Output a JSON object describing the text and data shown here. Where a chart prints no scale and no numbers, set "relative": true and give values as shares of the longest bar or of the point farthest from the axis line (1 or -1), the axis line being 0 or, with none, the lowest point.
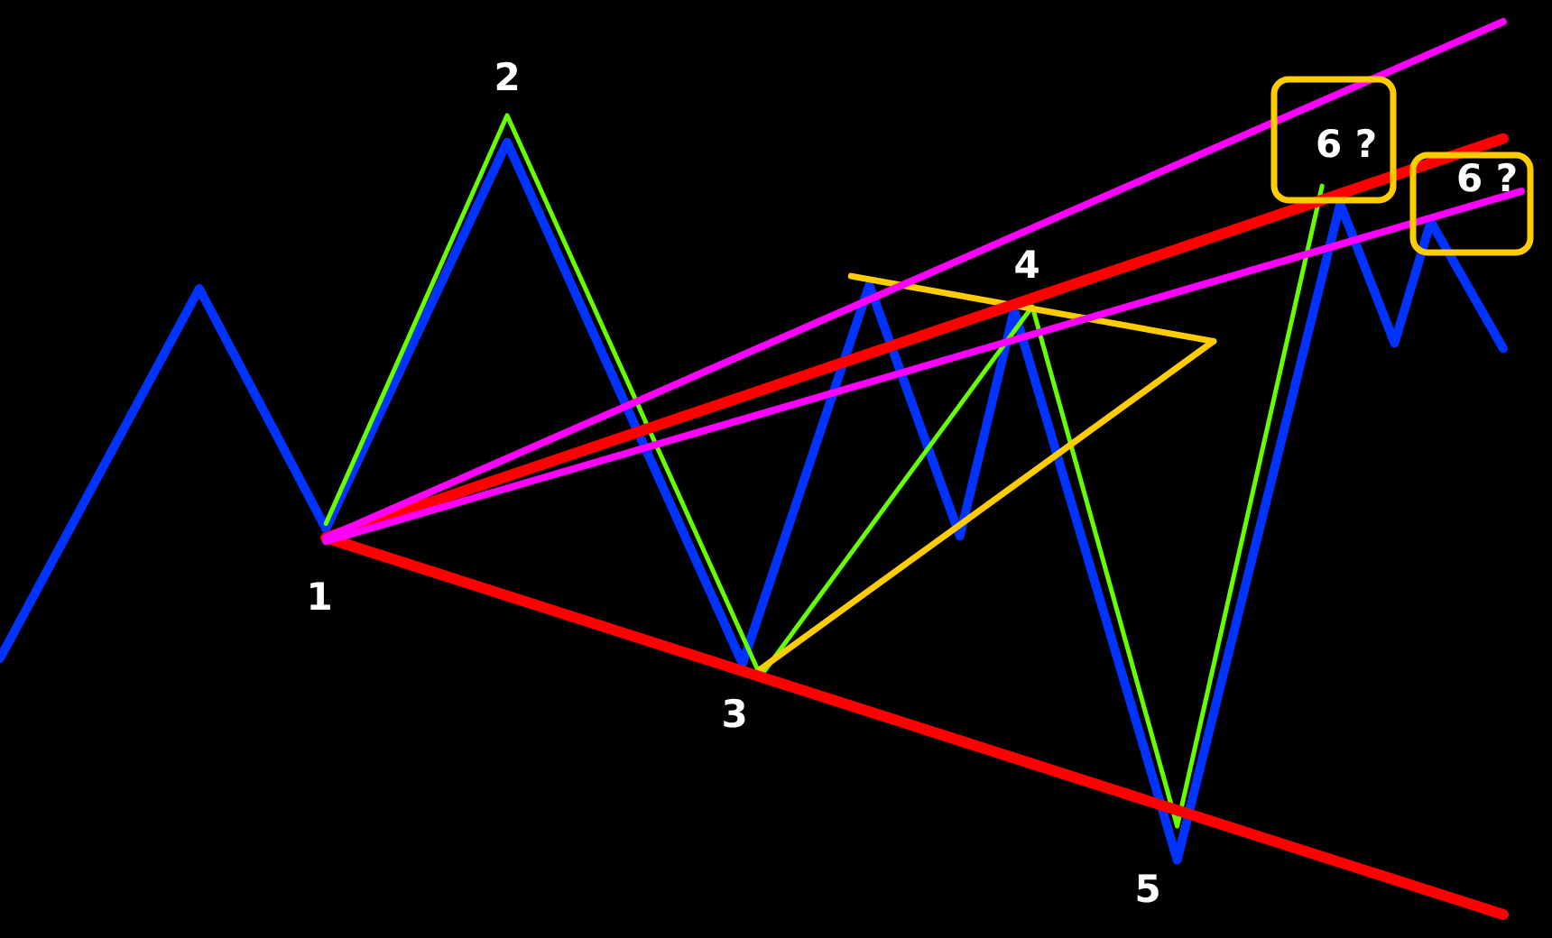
{
  "chart_data": {
    "type": "line",
    "relative": true,
    "tick_labels": false,
    "categories": [
      null,
      null,
      null,
      null,
      null,
      null,
      null,
      null,
      null,
      null,
      null,
      null,
      null,
      null,
      null,
      null,
      null,
      null,
      null,
      null,
      null,
      null,
      null,
      null,
      null,
      null,
      null,
      null,
      null,
      null,
      null,
      null,
      null,
      null,
      null,
      null,
      null,
      null,
      null,
      null,
      null,
      null,
      null,
      null,
      null,
      null,
      null,
      null,
      null,
      null,
      null,
      null,
      null,
      null,
      null,
      null,
      null,
      null,
      null,
      null,
      null,
      null,
      null,
      null,
      null,
      null,
      null,
      null,
      null,
      null,
      null,
      null,
      null,
      null,
      null,
      null,
      null,
      null,
      null,
      null,
      null,
      null,
      null,
      null,
      null
    ],
    "series": [
      {
        "color": "#0033ff",
        "values": [
          0.287,
          null,
          null,
          null,
          null,
          null,
          null,
          null,
          null,
          null,
          null,
          0.701,
          null,
          null,
          null,
          null,
          null,
          null,
          0.432,
          null,
          null,
          null,
          null,
          null,
          null,
          null,
          null,
          null,
          0.865,
          null,
          null,
          null,
          null,
          null,
          null,
          null,
          null,
          null,
          null,
          null,
          null,
          0.281,
          null,
          null,
          null,
          null,
          null,
          null,
          0.705,
          null,
          null,
          null,
          null,
          0.424,
          null,
          null,
          0.677,
          null,
          null,
          null,
          null,
          null,
          null,
          null,
          null,
          0.061,
          null,
          null,
          null,
          null,
          null,
          null,
          null,
          null,
          0.796,
          null,
          null,
          0.64,
          null,
          0.776,
          null,
          null,
          null,
          0.634,
          null
        ]
      },
      {
        "color": "#66ff00",
        "values": [
          null,
          null,
          null,
          null,
          null,
          null,
          null,
          null,
          null,
          null,
          null,
          null,
          null,
          null,
          null,
          null,
          null,
          null,
          0.438,
          null,
          null,
          null,
          null,
          null,
          null,
          null,
          null,
          null,
          0.895,
          null,
          null,
          null,
          null,
          null,
          null,
          null,
          null,
          null,
          null,
          null,
          null,
          null,
          0.267,
          null,
          null,
          null,
          null,
          null,
          null,
          null,
          null,
          null,
          null,
          null,
          null,
          null,
          null,
          0.681,
          null,
          null,
          null,
          null,
          null,
          null,
          null,
          0.099,
          null,
          null,
          null,
          null,
          null,
          null,
          null,
          0.816,
          null,
          null,
          null,
          null,
          null,
          null,
          null,
          null,
          null,
          null,
          null
        ]
      },
      {
        "color": "#ffcc00",
        "values": [
          null,
          null,
          null,
          null,
          null,
          null,
          null,
          null,
          null,
          null,
          null,
          null,
          null,
          null,
          null,
          null,
          null,
          null,
          null,
          null,
          null,
          null,
          null,
          null,
          null,
          null,
          null,
          null,
          null,
          null,
          null,
          null,
          null,
          null,
          null,
          null,
          null,
          null,
          null,
          null,
          null,
          null,
          null,
          null,
          null,
          null,
          null,
          0.715,
          null,
          null,
          null,
          null,
          null,
          null,
          null,
          null,
          null,
          null,
          null,
          null,
          null,
          null,
          null,
          null,
          null,
          null,
          null,
          0.642,
          null,
          null,
          null,
          null,
          null,
          null,
          null,
          null,
          null,
          null,
          null,
          null,
          null,
          null,
          null,
          null,
          null
        ]
      },
      {
        "color": "#ffcc00",
        "values": [
          null,
          null,
          null,
          null,
          null,
          null,
          null,
          null,
          null,
          null,
          null,
          null,
          null,
          null,
          null,
          null,
          null,
          null,
          null,
          null,
          null,
          null,
          null,
          null,
          null,
          null,
          null,
          null,
          null,
          null,
          null,
          null,
          null,
          null,
          null,
          null,
          null,
          null,
          null,
          null,
          null,
          null,
          0.275,
          null,
          null,
          null,
          null,
          null,
          null,
          null,
          null,
          null,
          null,
          null,
          null,
          null,
          null,
          null,
          null,
          null,
          null,
          null,
          null,
          null,
          null,
          null,
          null,
          0.642,
          null,
          null,
          null,
          null,
          null,
          null,
          null,
          null,
          null,
          null,
          null,
          null,
          null,
          null,
          null,
          null,
          null
        ]
      },
      {
        "color": "#ff0000",
        "values": [
          null,
          null,
          null,
          null,
          null,
          null,
          null,
          null,
          null,
          null,
          null,
          null,
          null,
          null,
          null,
          null,
          null,
          null,
          0.422,
          null,
          null,
          null,
          null,
          null,
          null,
          null,
          null,
          null,
          null,
          null,
          null,
          null,
          null,
          null,
          null,
          null,
          null,
          null,
          null,
          null,
          null,
          null,
          null,
          null,
          null,
          null,
          null,
          null,
          null,
          null,
          null,
          null,
          null,
          null,
          null,
          null,
          null,
          null,
          null,
          null,
          null,
          null,
          null,
          null,
          null,
          null,
          null,
          null,
          null,
          null,
          null,
          null,
          null,
          null,
          null,
          null,
          null,
          null,
          null,
          null,
          null,
          null,
          null,
          0,
          null
        ]
      },
      {
        "color": "#ff0000",
        "values": [
          null,
          null,
          null,
          null,
          null,
          null,
          null,
          null,
          null,
          null,
          null,
          null,
          null,
          null,
          null,
          null,
          null,
          null,
          0.422,
          null,
          null,
          null,
          null,
          null,
          null,
          null,
          null,
          null,
          null,
          null,
          null,
          null,
          null,
          null,
          null,
          null,
          null,
          null,
          null,
          null,
          null,
          null,
          null,
          null,
          null,
          null,
          null,
          null,
          null,
          null,
          null,
          null,
          null,
          null,
          null,
          null,
          null,
          null,
          null,
          null,
          null,
          null,
          null,
          null,
          null,
          null,
          null,
          null,
          null,
          null,
          null,
          null,
          null,
          null,
          null,
          null,
          null,
          null,
          null,
          null,
          null,
          null,
          null,
          0.869,
          null
        ]
      },
      {
        "color": "#ff00ff",
        "values": [
          null,
          null,
          null,
          null,
          null,
          null,
          null,
          null,
          null,
          null,
          null,
          null,
          null,
          null,
          null,
          null,
          null,
          null,
          0.422,
          null,
          null,
          null,
          null,
          null,
          null,
          null,
          null,
          null,
          null,
          null,
          null,
          null,
          null,
          null,
          null,
          null,
          null,
          null,
          null,
          null,
          null,
          null,
          null,
          null,
          null,
          null,
          null,
          null,
          null,
          null,
          null,
          null,
          null,
          null,
          null,
          null,
          null,
          null,
          null,
          null,
          null,
          null,
          null,
          null,
          null,
          null,
          null,
          null,
          null,
          null,
          null,
          null,
          null,
          null,
          null,
          null,
          null,
          null,
          null,
          null,
          null,
          null,
          null,
          1,
          null
        ]
      },
      {
        "color": "#ff00ff",
        "values": [
          null,
          null,
          null,
          null,
          null,
          null,
          null,
          null,
          null,
          null,
          null,
          null,
          null,
          null,
          null,
          null,
          null,
          null,
          0.418,
          null,
          null,
          null,
          null,
          null,
          null,
          null,
          null,
          null,
          null,
          null,
          null,
          null,
          null,
          null,
          null,
          null,
          null,
          null,
          null,
          null,
          null,
          null,
          null,
          null,
          null,
          null,
          null,
          null,
          null,
          null,
          null,
          null,
          null,
          null,
          null,
          null,
          null,
          null,
          null,
          null,
          null,
          null,
          null,
          null,
          null,
          null,
          null,
          null,
          null,
          null,
          null,
          null,
          null,
          null,
          null,
          null,
          null,
          null,
          null,
          null,
          null,
          null,
          null,
          null,
          0.81
        ]
      }
    ],
    "annotations": [
      "1",
      "2",
      "3",
      "4",
      "5",
      "6 ?",
      "6 ?"
    ]
  }
}
